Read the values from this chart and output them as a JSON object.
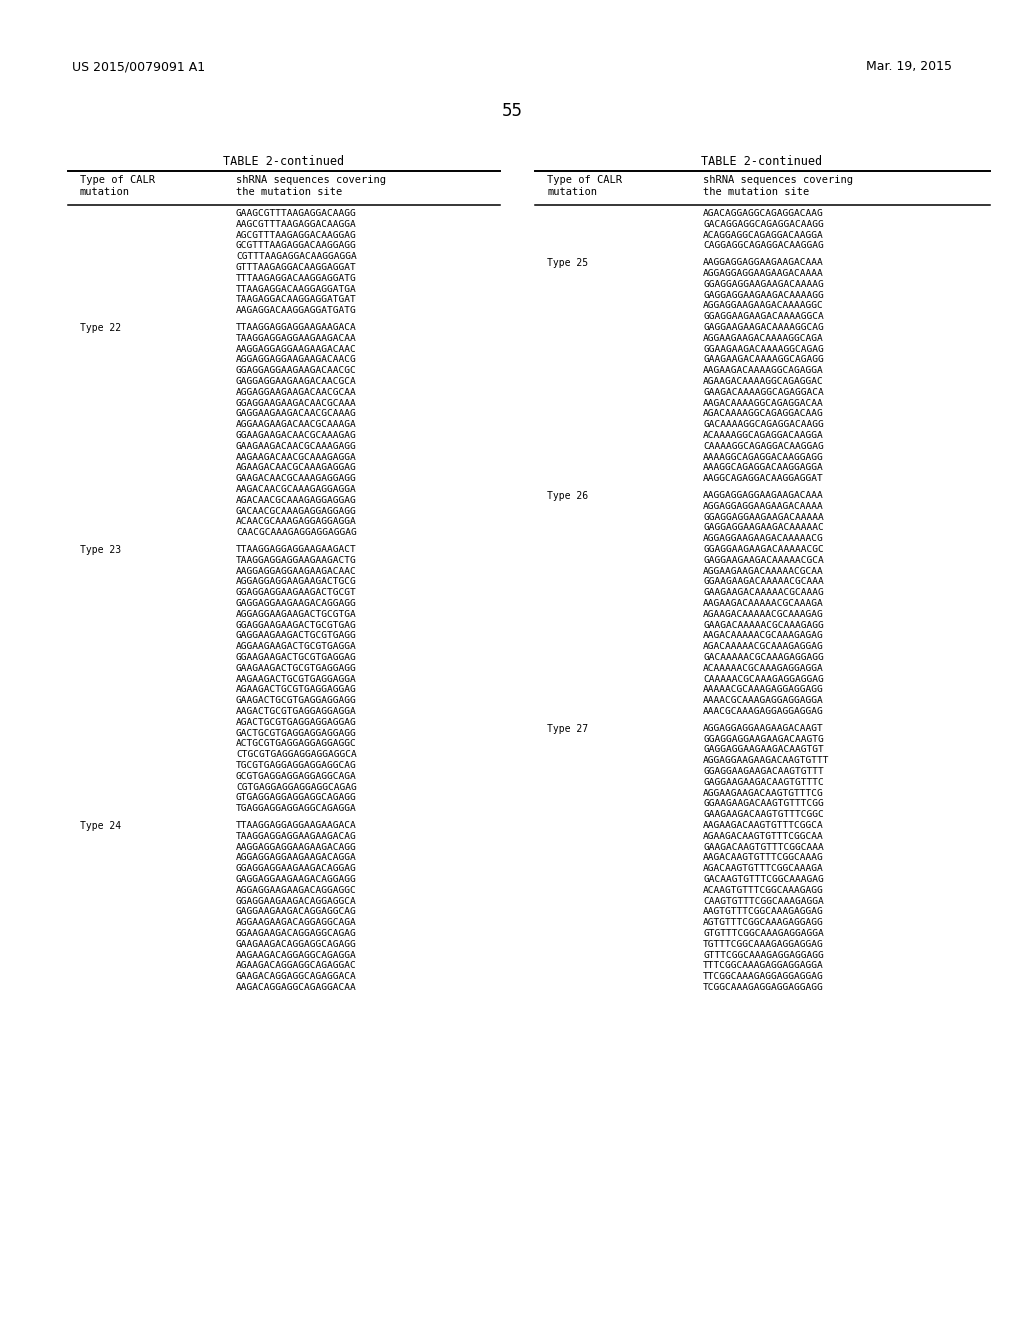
{
  "background_color": "#ffffff",
  "page_number": "55",
  "patent_left": "US 2015/0079091 A1",
  "patent_right": "Mar. 19, 2015",
  "table_title": "TABLE 2-continued",
  "left_sections": [
    {
      "type_label": "",
      "sequences": [
        "GAAGCGTTTAAGAGGACAAGG",
        "AAGCGTTTAAGAGGACAAGGA",
        "AGCGTTTAAGAGGACAAGGAG",
        "GCGTTTAAGAGGACAAGGAGG",
        "CGTTTAAGAGGACAAGGAGGA",
        "GTTTAAGAGGACAAGGAGGAT",
        "TTTAAGAGGACAAGGAGGATG",
        "TTAAGAGGACAAGGAGGATGA",
        "TAAGAGGACAAGGAGGATGAT",
        "AAGAGGACAAGGAGGATGATG"
      ]
    },
    {
      "type_label": "Type 22",
      "sequences": [
        "TTAAGGAGGAGGAAGAAGACA",
        "TAAGGAGGAGGAAGAAGACAA",
        "AAGGAGGAGGAAGAAGACAAC",
        "AGGAGGAGGAAGAAGACAACG",
        "GGAGGAGGAAGAAGACAACGC",
        "GAGGAGGAAGAAGACAACGCA",
        "AGGAGGAAGAAGACAACGCAA",
        "GGAGGAAGAAGACAACGCAAA",
        "GAGGAAGAAGACAACGCAAAG",
        "AGGAAGAAGACAACGCAAAGA",
        "GGAAGAAGACAACGCAAAGAG",
        "GAAGAAGACAACGCAAAGAGG",
        "AAGAAGACAACGCAAAGAGGA",
        "AGAAGACAACGCAAAGAGGAG",
        "GAAGACAACGCAAAGAGGAGG",
        "AAGACAACGCAAAGAGGAGGA",
        "AGACAACGCAAAGAGGAGGAG",
        "GACAACGCAAAGAGGAGGAGG",
        "ACAACGCAAAGAGGAGGAGGA",
        "CAACGCAAAGAGGAGGAGGAG"
      ]
    },
    {
      "type_label": "Type 23",
      "sequences": [
        "TTAAGGAGGAGGAAGAAGACT",
        "TAAGGAGGAGGAAGAAGACTG",
        "AAGGAGGAGGAAGAAGACAAC",
        "AGGAGGAGGAAGAAGACTGCG",
        "GGAGGAGGAAGAAGACTGCGT",
        "GAGGAGGAAGAAGACAGGAGG",
        "AGGAGGAAGAAGACTGCGTGA",
        "GGAGGAAGAAGACTGCGTGAG",
        "GAGGAAGAAGACTGCGTGAGG",
        "AGGAAGAAGACTGCGTGAGGA",
        "GGAAGAAGACTGCGTGAGGAG",
        "GAAGAAGACTGCGTGAGGAGG",
        "AAGAAGACTGCGTGAGGAGGA",
        "AGAAGACTGCGTGAGGAGGAG",
        "GAAGACTGCGTGAGGAGGAGG",
        "AAGACTGCGTGAGGAGGAGGA",
        "AGACTGCGTGAGGAGGAGGAG",
        "GACTGCGTGAGGAGGAGGAGG",
        "ACTGCGTGAGGAGGAGGAGGC",
        "CTGCGTGAGGAGGAGGAGGCA",
        "TGCGTGAGGAGGAGGAGGCAG",
        "GCGTGAGGAGGAGGAGGCAGA",
        "CGTGAGGAGGAGGAGGCAGAG",
        "GTGAGGAGGAGGAGGCAGAGG",
        "TGAGGAGGAGGAGGCAGAGGA"
      ]
    },
    {
      "type_label": "Type 24",
      "sequences": [
        "TTAAGGAGGAGGAAGAAGACA",
        "TAAGGAGGAGGAAGAAGACAG",
        "AAGGAGGAGGAAGAAGACAGG",
        "AGGAGGAGGAAGAAGACAGGA",
        "GGAGGAGGAAGAAGACAGGAG",
        "GAGGAGGAAGAAGACAGGAGG",
        "AGGAGGAAGAAGACAGGAGGC",
        "GGAGGAAGAAGACAGGAGGCA",
        "GAGGAAGAAGACAGGAGGCAG",
        "AGGAAGAAGACAGGAGGCAGA",
        "GGAAGAAGACAGGAGGCAGAG",
        "GAAGAAGACAGGAGGCAGAGG",
        "AAGAAGACAGGAGGCAGAGGA",
        "AGAAGACAGGAGGCAGAGGAC",
        "GAAGACAGGAGGCAGAGGACA",
        "AAGACAGGAGGCAGAGGACAA"
      ]
    }
  ],
  "right_sections": [
    {
      "type_label": "",
      "sequences": [
        "AGACAGGAGGCAGAGGACAAG",
        "GACAGGAGGCAGAGGACAAGG",
        "ACAGGAGGCAGAGGACAAGGA",
        "CAGGAGGCAGAGGACAAGGAG"
      ]
    },
    {
      "type_label": "Type 25",
      "sequences": [
        "AAGGAGGAGGAAGAAGACAAA",
        "AGGAGGAGGAAGAAGACAAAA",
        "GGAGGAGGAAGAAGACAAAAG",
        "GAGGAGGAAGAAGACAAAAGG",
        "AGGAGGAAGAAGACAAAAGGC",
        "GGAGGAAGAAGACAAAAGGCA",
        "GAGGAAGAAGACAAAAGGCAG",
        "AGGAAGAAGACAAAAGGCAGA",
        "GGAAGAAGACAAAAGGCAGAG",
        "GAAGAAGACAAAAGGCAGAGG",
        "AAGAAGACAAAAGGCAGAGGA",
        "AGAAGACAAAAGGCAGAGGAC",
        "GAAGACAAAAGGCAGAGGACA",
        "AAGACAAAAGGCAGAGGACAA",
        "AGACAAAAGGCAGAGGACAAG",
        "GACAAAAGGCAGAGGACAAGG",
        "ACAAAAGGCAGAGGACAAGGA",
        "CAAAAGGCAGAGGACAAGGAG",
        "AAAAGGCAGAGGACAAGGAGG",
        "AAAGGCAGAGGACAAGGAGGA",
        "AAGGCAGAGGACAAGGAGGAT"
      ]
    },
    {
      "type_label": "Type 26",
      "sequences": [
        "AAGGAGGAGGAAGAAGACAAA",
        "AGGAGGAGGAAGAAGACAAAA",
        "GGAGGAGGAAGAAGACAAAAA",
        "GAGGAGGAAGAAGACAAAAAC",
        "AGGAGGAAGAAGACAAAAACG",
        "GGAGGAAGAAGACAAAAACGC",
        "GAGGAAGAAGACAAAAACGCA",
        "AGGAAGAAGACAAAAACGCAA",
        "GGAAGAAGACAAAAACGCAAA",
        "GAAGAAGACAAAAACGCAAAG",
        "AAGAAGACAAAAACGCAAAGA",
        "AGAAGACAAAAACGCAAAGAG",
        "GAAGACAAAAACGCAAAGAGG",
        "AAGACAAAAACGCAAAGAGAG",
        "AGACAAAAACGCAAAGAGGAG",
        "GACAAAAACGCAAAGAGGAGG",
        "ACAAAAACGCAAAGAGGAGGA",
        "CAAAAACGCAAAGAGGAGGAG",
        "AAAAACGCAAAGAGGAGGAGG",
        "AAAACGCAAAGAGGAGGAGGA",
        "AAACGCAAAGAGGAGGAGGAG"
      ]
    },
    {
      "type_label": "Type 27",
      "sequences": [
        "AGGAGGAGGAAGAAGACAAGT",
        "GGAGGAGGAAGAAGACAAGTG",
        "GAGGAGGAAGAAGACAAGTGT",
        "AGGAGGAAGAAGACAAGTGTTT",
        "GGAGGAAGAAGACAAGTGTTT",
        "GAGGAAGAAGACAAGTGTTTC",
        "AGGAAGAAGACAAGTGTTTCG",
        "GGAAGAAGACAAGTGTTTCGG",
        "GAAGAAGACAAGTGTTTCGGC",
        "AAGAAGACAAGTGTTTCGGCA",
        "AGAAGACAAGTGTTTCGGCAA",
        "GAAGACAAGTGTTTCGGCAAA",
        "AAGACAAGTGTTTCGGCAAAG",
        "AGACAAGTGTTTCGGCAAAGA",
        "GACAAGTGTTTCGGCAAAGAG",
        "ACAAGTGTTTCGGCAAAGAGG",
        "CAAGTGTTTCGGCAAAGAGGA",
        "AAGTGTTTCGGCAAAGAGGAG",
        "AGTGTTTCGGCAAAGAGGAGG",
        "GTGTTTCGGCAAAGAGGAGGA",
        "TGTTTCGGCAAAGAGGAGGAG",
        "GTTTCGGCAAAGAGGAGGAGG",
        "TTTCGGCAAAGAGGAGGAGGA",
        "TTCGGCAAAGAGGAGGAGGAG",
        "TCGGCAAAGAGGAGGAGGAGG"
      ]
    }
  ]
}
